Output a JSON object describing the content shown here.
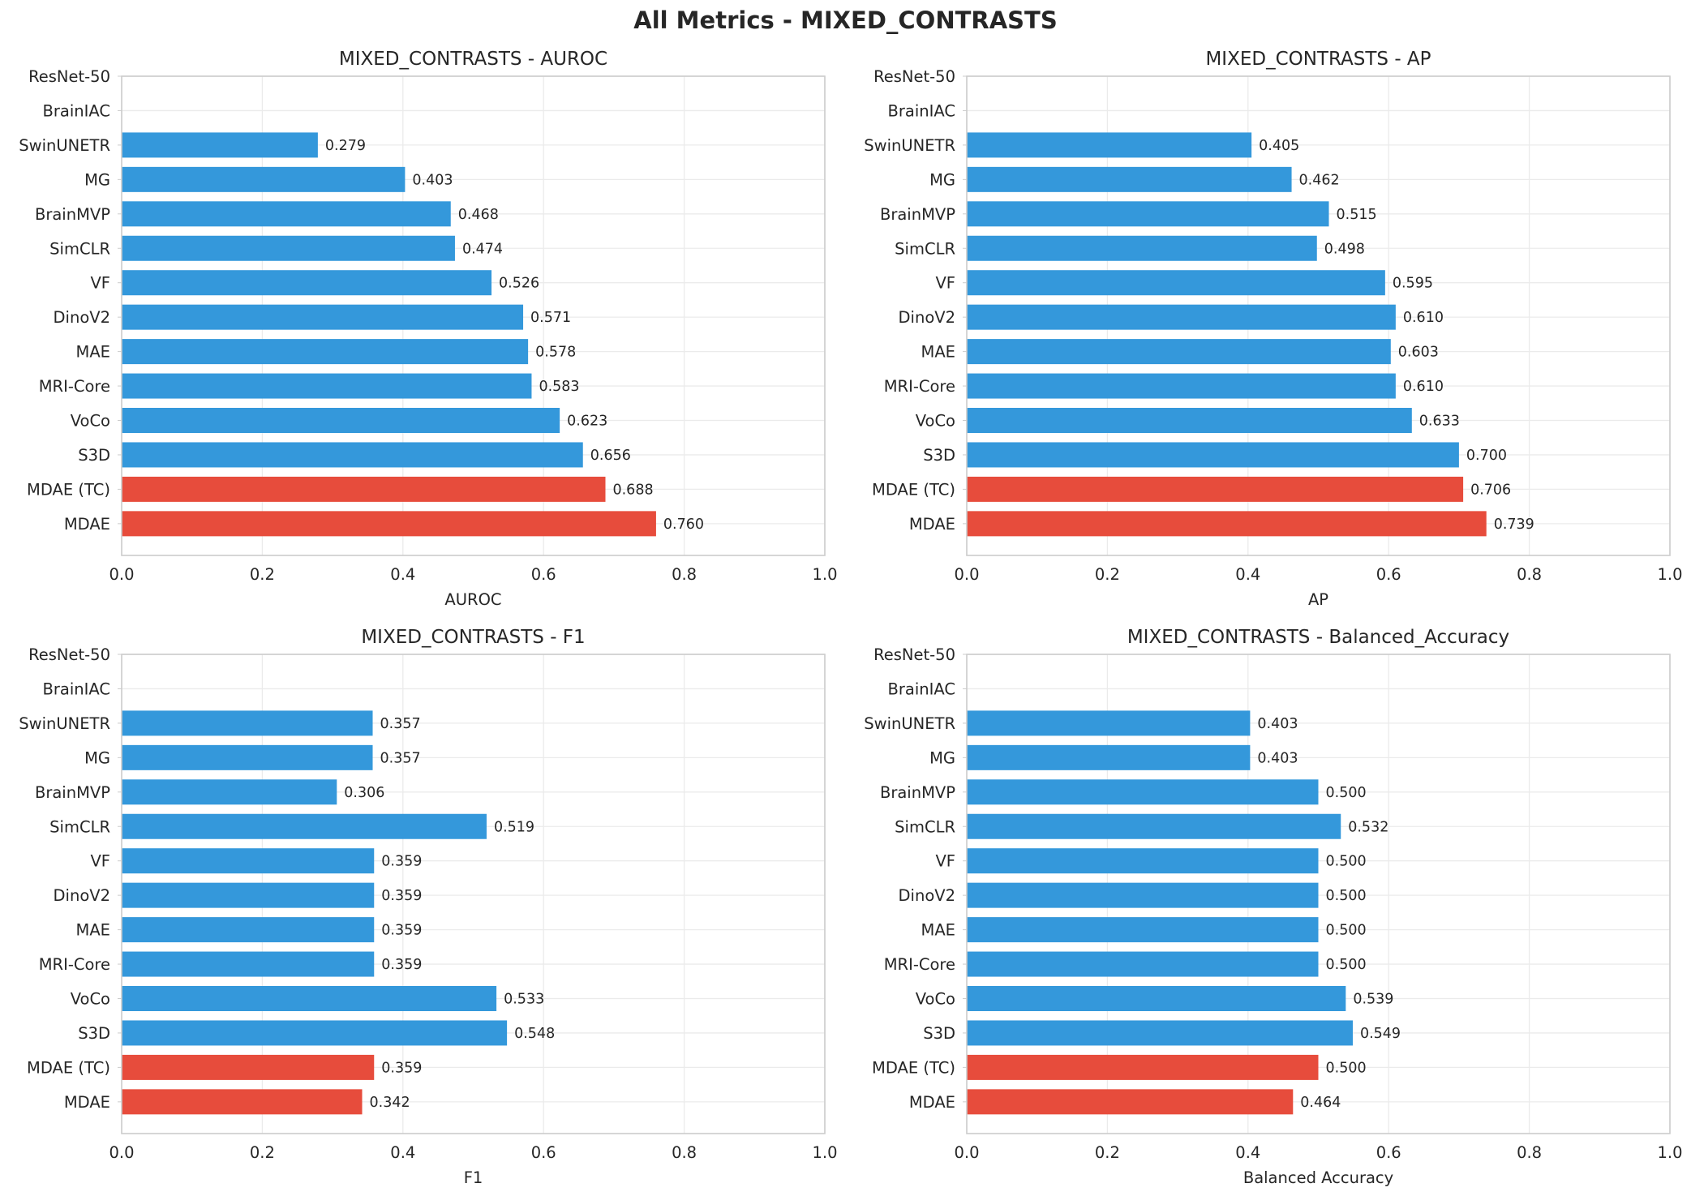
{
  "figure": {
    "title": "All Metrics - MIXED_CONTRASTS"
  },
  "colors": {
    "blue": "#3498db",
    "red": "#e74c3c",
    "grid": "#ebebeb",
    "spine": "#cccccc",
    "text": "#262626"
  },
  "chart_data": [
    {
      "type": "bar",
      "orientation": "horizontal",
      "title": "MIXED_CONTRASTS - AUROC",
      "xlabel": "AUROC",
      "xlim": [
        0.0,
        1.0
      ],
      "xticks": [
        "0.0",
        "0.2",
        "0.4",
        "0.6",
        "0.8",
        "1.0"
      ],
      "grid": true,
      "categories": [
        "ResNet-50",
        "BrainIAC",
        "SwinUNETR",
        "MG",
        "BrainMVP",
        "SimCLR",
        "VF",
        "DinoV2",
        "MAE",
        "MRI-Core",
        "VoCo",
        "S3D",
        "MDAE (TC)",
        "MDAE"
      ],
      "values": [
        null,
        null,
        0.279,
        0.403,
        0.468,
        0.474,
        0.526,
        0.571,
        0.578,
        0.583,
        0.623,
        0.656,
        0.688,
        0.76
      ],
      "labels": [
        "",
        "",
        "0.279",
        "0.403",
        "0.468",
        "0.474",
        "0.526",
        "0.571",
        "0.578",
        "0.583",
        "0.623",
        "0.656",
        "0.688",
        "0.760"
      ],
      "highlight": [
        "MDAE (TC)",
        "MDAE"
      ]
    },
    {
      "type": "bar",
      "orientation": "horizontal",
      "title": "MIXED_CONTRASTS - AP",
      "xlabel": "AP",
      "xlim": [
        0.0,
        1.0
      ],
      "xticks": [
        "0.0",
        "0.2",
        "0.4",
        "0.6",
        "0.8",
        "1.0"
      ],
      "grid": true,
      "categories": [
        "ResNet-50",
        "BrainIAC",
        "SwinUNETR",
        "MG",
        "BrainMVP",
        "SimCLR",
        "VF",
        "DinoV2",
        "MAE",
        "MRI-Core",
        "VoCo",
        "S3D",
        "MDAE (TC)",
        "MDAE"
      ],
      "values": [
        null,
        null,
        0.405,
        0.462,
        0.515,
        0.498,
        0.595,
        0.61,
        0.603,
        0.61,
        0.633,
        0.7,
        0.706,
        0.739
      ],
      "labels": [
        "",
        "",
        "0.405",
        "0.462",
        "0.515",
        "0.498",
        "0.595",
        "0.610",
        "0.603",
        "0.610",
        "0.633",
        "0.700",
        "0.706",
        "0.739"
      ],
      "highlight": [
        "MDAE (TC)",
        "MDAE"
      ]
    },
    {
      "type": "bar",
      "orientation": "horizontal",
      "title": "MIXED_CONTRASTS - F1",
      "xlabel": "F1",
      "xlim": [
        0.0,
        1.0
      ],
      "xticks": [
        "0.0",
        "0.2",
        "0.4",
        "0.6",
        "0.8",
        "1.0"
      ],
      "grid": true,
      "categories": [
        "ResNet-50",
        "BrainIAC",
        "SwinUNETR",
        "MG",
        "BrainMVP",
        "SimCLR",
        "VF",
        "DinoV2",
        "MAE",
        "MRI-Core",
        "VoCo",
        "S3D",
        "MDAE (TC)",
        "MDAE"
      ],
      "values": [
        null,
        null,
        0.357,
        0.357,
        0.306,
        0.519,
        0.359,
        0.359,
        0.359,
        0.359,
        0.533,
        0.548,
        0.359,
        0.342
      ],
      "labels": [
        "",
        "",
        "0.357",
        "0.357",
        "0.306",
        "0.519",
        "0.359",
        "0.359",
        "0.359",
        "0.359",
        "0.533",
        "0.548",
        "0.359",
        "0.342"
      ],
      "highlight": [
        "MDAE (TC)",
        "MDAE"
      ]
    },
    {
      "type": "bar",
      "orientation": "horizontal",
      "title": "MIXED_CONTRASTS - Balanced_Accuracy",
      "xlabel": "Balanced Accuracy",
      "xlim": [
        0.0,
        1.0
      ],
      "xticks": [
        "0.0",
        "0.2",
        "0.4",
        "0.6",
        "0.8",
        "1.0"
      ],
      "grid": true,
      "categories": [
        "ResNet-50",
        "BrainIAC",
        "SwinUNETR",
        "MG",
        "BrainMVP",
        "SimCLR",
        "VF",
        "DinoV2",
        "MAE",
        "MRI-Core",
        "VoCo",
        "S3D",
        "MDAE (TC)",
        "MDAE"
      ],
      "values": [
        null,
        null,
        0.403,
        0.403,
        0.5,
        0.532,
        0.5,
        0.5,
        0.5,
        0.5,
        0.539,
        0.549,
        0.5,
        0.464
      ],
      "labels": [
        "",
        "",
        "0.403",
        "0.403",
        "0.500",
        "0.532",
        "0.500",
        "0.500",
        "0.500",
        "0.500",
        "0.539",
        "0.549",
        "0.500",
        "0.464"
      ],
      "highlight": [
        "MDAE (TC)",
        "MDAE"
      ]
    }
  ]
}
